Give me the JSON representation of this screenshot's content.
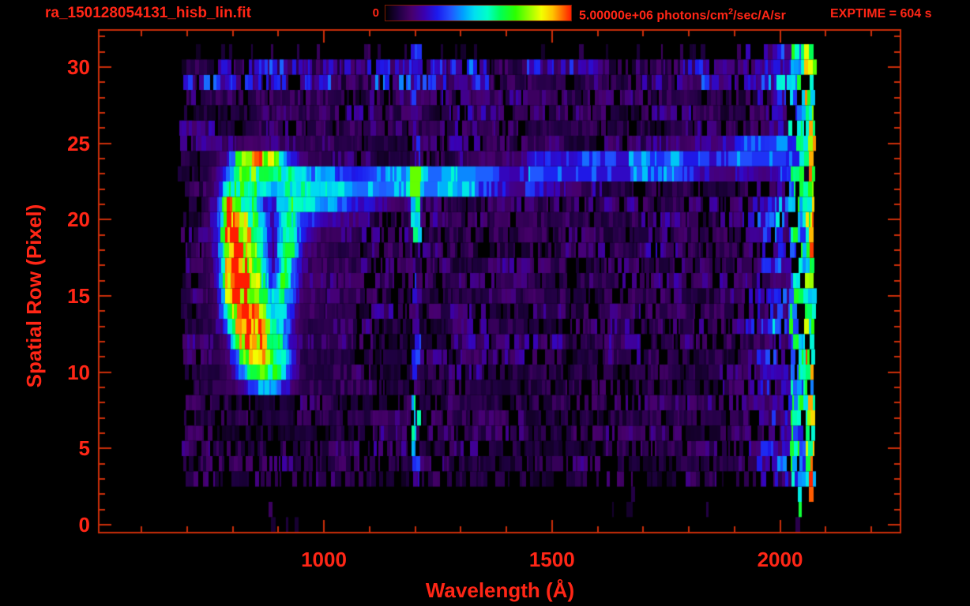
{
  "header": {
    "filename": "ra_150128054131_hisb_lin.fit",
    "colorbar_min": "0",
    "colorbar_max_value": "5.00000e+06",
    "units_prefix": " photons/cm",
    "units_sup": "2",
    "units_suffix": "/sec/A/sr",
    "exptime": "EXPTIME = 604 s"
  },
  "chart_data": {
    "type": "heatmap",
    "title": "ra_150128054131_hisb_lin.fit",
    "xlabel": "Wavelength (Å)",
    "ylabel": "Spatial Row (Pixel)",
    "xlim": [
      505,
      2266
    ],
    "ylim": [
      -0.55,
      32.5
    ],
    "x_tick_values": [
      1000,
      1500,
      2000
    ],
    "x_tick_labels": [
      "1000",
      "1500",
      "2000"
    ],
    "x_minor_step_A": 100,
    "y_tick_values": [
      0,
      5,
      10,
      15,
      20,
      25,
      30
    ],
    "y_tick_labels": [
      "0",
      "5",
      "10",
      "15",
      "20",
      "25",
      "30"
    ],
    "y_minor_step": 1,
    "grid": false,
    "legend_position": "top-colorbar",
    "colorbar": {
      "min_label": "0",
      "max_value": "5.00000e+06",
      "units": "photons/cm2/sec/A/sr"
    },
    "exptime_s": 604,
    "data_extent": {
      "wavelength_A": [
        676,
        2074
      ],
      "rows": [
        0,
        31
      ]
    },
    "colormap_stops": [
      [
        0.0,
        "#000000"
      ],
      [
        0.07,
        "#1e0040"
      ],
      [
        0.14,
        "#47006b"
      ],
      [
        0.21,
        "#3a00b0"
      ],
      [
        0.28,
        "#1b1bee"
      ],
      [
        0.35,
        "#2255ff"
      ],
      [
        0.42,
        "#00a2ff"
      ],
      [
        0.48,
        "#00e0f0"
      ],
      [
        0.55,
        "#00ffc8"
      ],
      [
        0.62,
        "#00ff55"
      ],
      [
        0.7,
        "#2bff00"
      ],
      [
        0.78,
        "#9dff00"
      ],
      [
        0.84,
        "#f2ff00"
      ],
      [
        0.9,
        "#ffc400"
      ],
      [
        0.95,
        "#ff7000"
      ],
      [
        1.0,
        "#ff1c00"
      ]
    ],
    "features": {
      "background_speckle": {
        "row_profiles": [
          {
            "rows": [
              0,
              2
            ],
            "density": 0.05,
            "amp": [
              0.05,
              0.1
            ]
          },
          {
            "rows": [
              3,
              3
            ],
            "density": 0.55,
            "amp": [
              0.05,
              0.11
            ]
          },
          {
            "rows": [
              4,
              9
            ],
            "density": 0.75,
            "amp": [
              0.05,
              0.13
            ]
          },
          {
            "rows": [
              10,
              24
            ],
            "density": 0.8,
            "amp": [
              0.05,
              0.15
            ]
          },
          {
            "rows": [
              25,
              28
            ],
            "density": 0.85,
            "amp": [
              0.05,
              0.15
            ]
          },
          {
            "rows": [
              29,
              30
            ],
            "density": 0.92,
            "amp": [
              0.06,
              0.26
            ]
          },
          {
            "rows": [
              31,
              31
            ],
            "density": 0.15,
            "amp": [
              0.04,
              0.08
            ]
          }
        ]
      },
      "bright_right_edge": {
        "start_A": 1855,
        "full_A": 1995,
        "green_from_A": 2022,
        "edge_from_A": 2056,
        "end_A": 2074,
        "red_spot_rows": [
          3,
          6
        ]
      },
      "lyman_alpha_column": {
        "wavelength_A": 1203,
        "half_width_A": 9,
        "bright_rows": [
          [
            5,
            8
          ],
          [
            19,
            23
          ]
        ]
      },
      "source_trace": {
        "row_at_1050A": 22.0,
        "slope_rows_per_A": 0.00245,
        "start_A": 935,
        "end_A": 2074,
        "half_width_rows": 1.55,
        "bright_spot_A": 1200,
        "bright_spot_value": 0.74
      },
      "airglow_blob": {
        "lam_start": 730,
        "lam_step": 20,
        "row_start": 25,
        "row_step": -1,
        "grid": [
          [
            0.07,
            0.07,
            0.08,
            0.1,
            0.12,
            0.12,
            0.12,
            0.12,
            0.1,
            0.1,
            0.08,
            0.08,
            0.08,
            0.08,
            0.07,
            0.07,
            0.07,
            0.07
          ],
          [
            0.07,
            0.08,
            0.12,
            0.25,
            0.55,
            0.8,
            0.84,
            0.84,
            0.76,
            0.5,
            0.28,
            0.15,
            0.12,
            0.1,
            0.08,
            0.08,
            0.08,
            0.08
          ],
          [
            0.07,
            0.1,
            0.18,
            0.4,
            0.62,
            0.66,
            0.66,
            0.66,
            0.62,
            0.57,
            0.5,
            0.45,
            0.42,
            0.4,
            0.38,
            0.35,
            0.32,
            0.28
          ],
          [
            0.07,
            0.1,
            0.22,
            0.55,
            0.66,
            0.62,
            0.57,
            0.5,
            0.45,
            0.5,
            0.55,
            0.5,
            0.47,
            0.44,
            0.42,
            0.4,
            0.36,
            0.3
          ],
          [
            0.08,
            0.12,
            0.28,
            0.97,
            0.7,
            0.62,
            0.55,
            0.3,
            0.22,
            0.55,
            0.62,
            0.48,
            0.4,
            0.34,
            0.3,
            0.26,
            0.24,
            0.2
          ],
          [
            0.08,
            0.15,
            0.32,
            1.0,
            0.97,
            0.76,
            0.6,
            0.4,
            0.16,
            0.5,
            0.57,
            0.36,
            0.28,
            0.24,
            0.2,
            0.18,
            0.16,
            0.14
          ],
          [
            0.08,
            0.15,
            0.32,
            1.0,
            1.0,
            0.84,
            0.64,
            0.45,
            0.14,
            0.55,
            0.6,
            0.3,
            0.18,
            0.14,
            0.12,
            0.1,
            0.1,
            0.1
          ],
          [
            0.08,
            0.12,
            0.3,
            0.97,
            1.0,
            0.88,
            0.66,
            0.5,
            0.12,
            0.6,
            0.55,
            0.24,
            0.14,
            0.12,
            0.1,
            0.08,
            0.08,
            0.08
          ],
          [
            0.08,
            0.1,
            0.26,
            0.97,
            1.0,
            0.92,
            0.7,
            0.5,
            0.15,
            0.6,
            0.48,
            0.2,
            0.12,
            0.1,
            0.08,
            0.08,
            0.08,
            0.08
          ],
          [
            0.07,
            0.1,
            0.24,
            0.94,
            1.0,
            0.95,
            0.76,
            0.55,
            0.25,
            0.64,
            0.42,
            0.16,
            0.1,
            0.08,
            0.08,
            0.08,
            0.08,
            0.08
          ],
          [
            0.07,
            0.1,
            0.2,
            0.9,
            1.0,
            0.97,
            0.8,
            0.6,
            0.45,
            0.58,
            0.36,
            0.14,
            0.1,
            0.08,
            0.08,
            0.08,
            0.08,
            0.08
          ],
          [
            0.07,
            0.08,
            0.16,
            0.65,
            0.97,
            1.0,
            0.86,
            0.7,
            0.55,
            0.52,
            0.3,
            0.12,
            0.1,
            0.08,
            0.08,
            0.08,
            0.08,
            0.08
          ],
          [
            0.07,
            0.08,
            0.12,
            0.38,
            0.92,
            1.0,
            0.92,
            0.76,
            0.62,
            0.46,
            0.26,
            0.1,
            0.08,
            0.08,
            0.08,
            0.08,
            0.08,
            0.08
          ],
          [
            0.07,
            0.08,
            0.1,
            0.22,
            0.72,
            0.95,
            1.0,
            0.86,
            0.7,
            0.5,
            0.22,
            0.1,
            0.08,
            0.08,
            0.08,
            0.08,
            0.08,
            0.08
          ],
          [
            0.06,
            0.07,
            0.08,
            0.16,
            0.42,
            0.82,
            0.92,
            0.86,
            0.76,
            0.56,
            0.26,
            0.1,
            0.08,
            0.07,
            0.07,
            0.07,
            0.07,
            0.07
          ],
          [
            0.06,
            0.07,
            0.08,
            0.1,
            0.26,
            0.52,
            0.66,
            0.7,
            0.62,
            0.52,
            0.3,
            0.12,
            0.08,
            0.07,
            0.07,
            0.07,
            0.07,
            0.07
          ],
          [
            0.05,
            0.06,
            0.07,
            0.08,
            0.12,
            0.26,
            0.36,
            0.42,
            0.36,
            0.3,
            0.16,
            0.08,
            0.07,
            0.06,
            0.06,
            0.06,
            0.06,
            0.06
          ]
        ]
      },
      "bottom_dashes": [
        {
          "wavelength_A": 882,
          "rows": [
            0,
            1
          ],
          "value": 0.12
        },
        {
          "wavelength_A": 1908,
          "rows": [
            0,
            1
          ],
          "value": 0.3
        }
      ]
    }
  }
}
